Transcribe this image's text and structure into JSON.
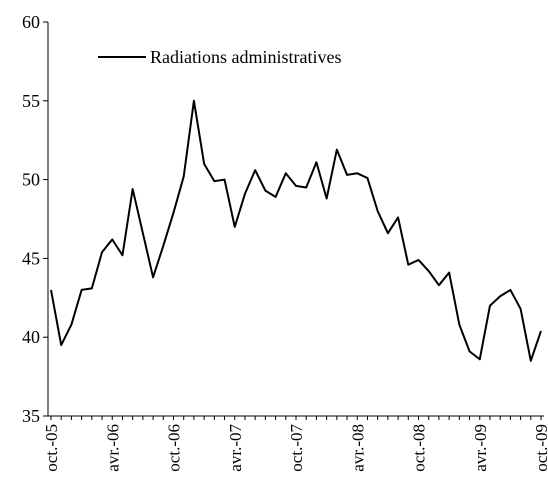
{
  "chart_data": {
    "type": "line",
    "title": "",
    "xlabel": "",
    "ylabel": "",
    "ylim": [
      35,
      60
    ],
    "y_ticks": [
      35,
      40,
      45,
      50,
      55,
      60
    ],
    "grid": false,
    "legend": {
      "position": "top-left",
      "entries": [
        "Radiations administratives"
      ]
    },
    "x_tick_labels": [
      "oct.-05",
      "avr.-06",
      "oct.-06",
      "avr.-07",
      "oct.-07",
      "avr.-08",
      "oct.-08",
      "avr.-09",
      "oct.-09"
    ],
    "x": [
      "oct.-05",
      "nov.-05",
      "déc.-05",
      "janv.-06",
      "févr.-06",
      "mars-06",
      "avr.-06",
      "mai-06",
      "juin-06",
      "juil.-06",
      "août-06",
      "sept.-06",
      "oct.-06",
      "nov.-06",
      "déc.-06",
      "janv.-07",
      "févr.-07",
      "mars-07",
      "avr.-07",
      "mai-07",
      "juin-07",
      "juil.-07",
      "août-07",
      "sept.-07",
      "oct.-07",
      "nov.-07",
      "déc.-07",
      "janv.-08",
      "févr.-08",
      "mars-08",
      "avr.-08",
      "mai-08",
      "juin-08",
      "juil.-08",
      "août-08",
      "sept.-08",
      "oct.-08",
      "nov.-08",
      "déc.-08",
      "janv.-09",
      "févr.-09",
      "mars-09",
      "avr.-09",
      "mai-09",
      "juin-09",
      "juil.-09",
      "août-09",
      "sept.-09",
      "oct.-09"
    ],
    "series": [
      {
        "name": "Radiations administratives",
        "color": "#000000",
        "values": [
          43.0,
          39.5,
          40.8,
          43.0,
          43.1,
          45.4,
          46.2,
          45.2,
          49.4,
          46.6,
          43.8,
          45.8,
          47.9,
          50.2,
          55.0,
          51.0,
          49.9,
          50.0,
          47.0,
          49.1,
          50.6,
          49.3,
          48.9,
          50.4,
          49.6,
          49.5,
          51.1,
          48.8,
          51.9,
          50.3,
          50.4,
          50.1,
          48.0,
          46.6,
          47.6,
          44.6,
          44.9,
          44.2,
          43.3,
          44.1,
          40.8,
          39.1,
          38.6,
          42.0,
          42.6,
          43.0,
          41.8,
          38.5,
          40.4
        ]
      }
    ]
  }
}
